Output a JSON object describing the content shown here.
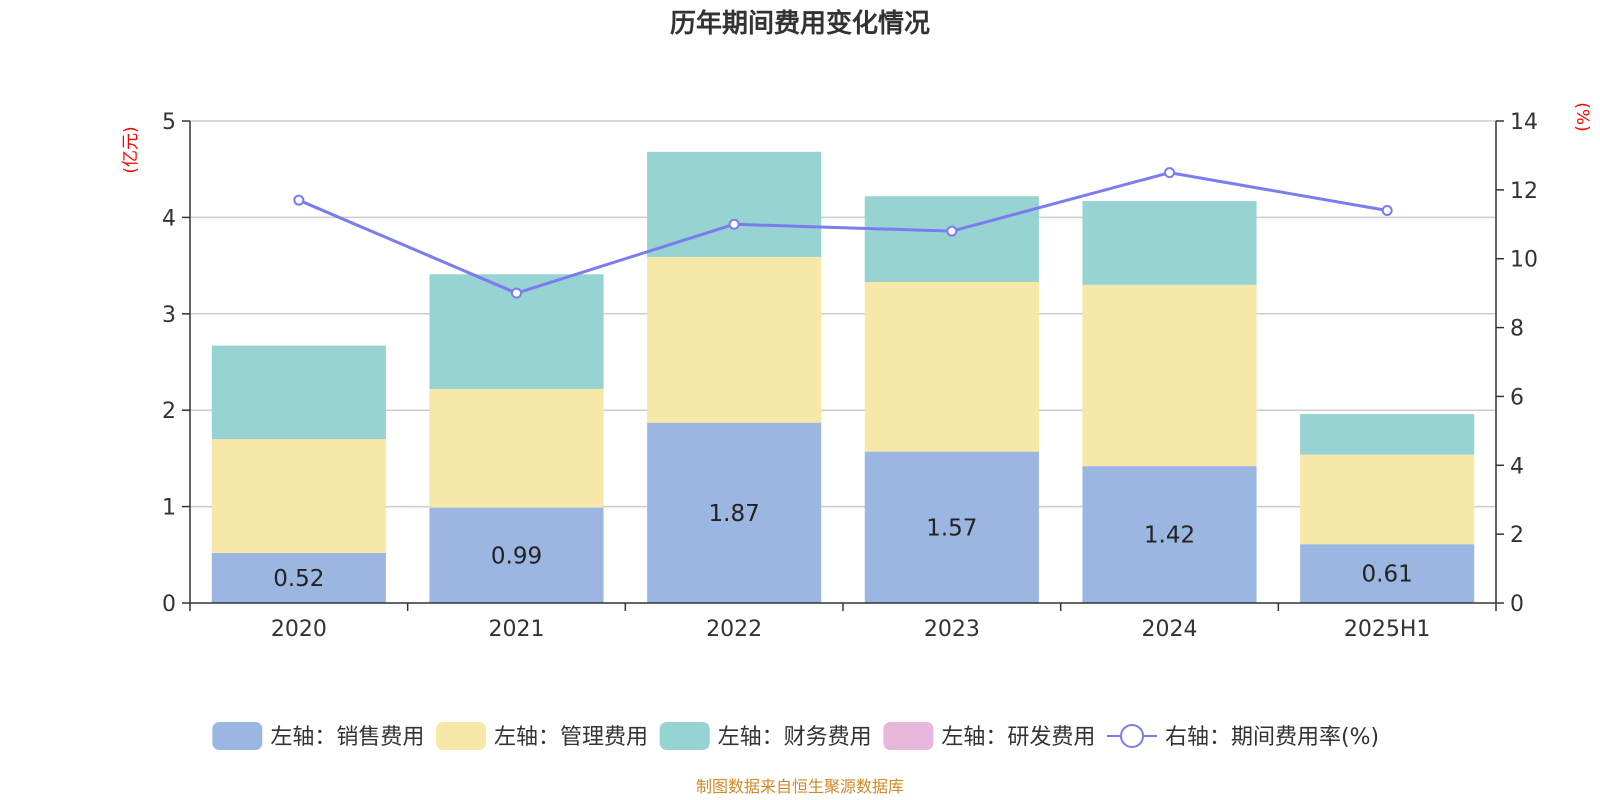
{
  "chart_data": {
    "type": "bar",
    "title": "历年期间费用变化情况",
    "categories": [
      "2020",
      "2021",
      "2022",
      "2023",
      "2024",
      "2025H1"
    ],
    "left_axis": {
      "unit_label": "(亿元)",
      "min": 0,
      "max": 5,
      "ticks": [
        0,
        1,
        2,
        3,
        4,
        5
      ]
    },
    "right_axis": {
      "unit_label": "(%)",
      "min": 0,
      "max": 14,
      "ticks": [
        0,
        2,
        4,
        6,
        8,
        10,
        12,
        14
      ]
    },
    "series": [
      {
        "name": "左轴：销售费用",
        "kind": "stacked-bar",
        "axis": "left",
        "color": "#9bb7e1",
        "values": [
          0.52,
          0.99,
          1.87,
          1.57,
          1.42,
          0.61
        ],
        "show_labels": true
      },
      {
        "name": "左轴：管理费用",
        "kind": "stacked-bar",
        "axis": "left",
        "color": "#f7e7a8",
        "values": [
          1.18,
          1.23,
          1.72,
          1.76,
          1.88,
          0.93
        ],
        "show_labels": false
      },
      {
        "name": "左轴：财务费用",
        "kind": "stacked-bar",
        "axis": "left",
        "color": "#97d3d3",
        "values": [
          0.97,
          1.19,
          1.09,
          0.89,
          0.87,
          0.42
        ],
        "show_labels": false
      },
      {
        "name": "左轴：研发费用",
        "kind": "stacked-bar",
        "axis": "left",
        "color": "#e8b8da",
        "values": [
          0,
          0,
          0,
          0,
          0,
          0
        ],
        "show_labels": false
      },
      {
        "name": "右轴：期间费用率(%)",
        "kind": "line",
        "axis": "right",
        "color": "#7b7cee",
        "values": [
          11.7,
          9.0,
          11.0,
          10.8,
          12.5,
          11.4
        ]
      }
    ],
    "legend_position": "bottom",
    "grid": true,
    "source": "制图数据来自恒生聚源数据库",
    "unit_color": "#ff0000",
    "source_color": "#d08a2a"
  }
}
